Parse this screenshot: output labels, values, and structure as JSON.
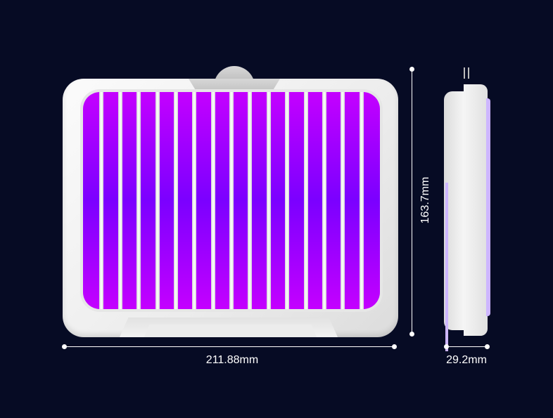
{
  "dimensions": {
    "width_label": "211.88mm",
    "height_label": "163.7mm",
    "depth_label": "29.2mm"
  },
  "colors": {
    "background": "#060b24",
    "uv_light": "#9b00ff",
    "housing": "#f2f2f2"
  },
  "product": {
    "uv_light_strips": 16
  }
}
